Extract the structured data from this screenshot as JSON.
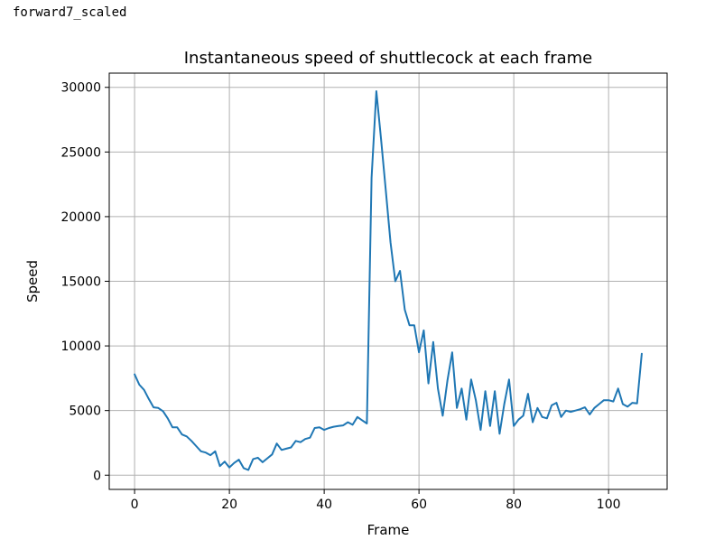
{
  "cell_label": "forward7_scaled",
  "chart_data": {
    "type": "line",
    "title": "Instantaneous speed of shuttlecock at each frame",
    "xlabel": "Frame",
    "ylabel": "Speed",
    "xlim": [
      -5.35,
      112.35
    ],
    "ylim": [
      -1100,
      31100
    ],
    "xticks": [
      0,
      20,
      40,
      60,
      80,
      100
    ],
    "yticks": [
      0,
      5000,
      10000,
      15000,
      20000,
      25000,
      30000
    ],
    "grid": true,
    "line_color": "#1f77b4",
    "series": [
      {
        "x": [
          0,
          1,
          2,
          3,
          4,
          5,
          6,
          7,
          8,
          9,
          10,
          11,
          12,
          13,
          14,
          15,
          16,
          17,
          18,
          19,
          20,
          21,
          22,
          23,
          24,
          25,
          26,
          27,
          28,
          29,
          30,
          31,
          32,
          33,
          34,
          35,
          36,
          37,
          38,
          39,
          40,
          41,
          42,
          43,
          44,
          45,
          46,
          47,
          48,
          49,
          50,
          51,
          52,
          53,
          54,
          55,
          56,
          57,
          58,
          59,
          60,
          61,
          62,
          63,
          64,
          65,
          66,
          67,
          68,
          69,
          70,
          71,
          72,
          73,
          74,
          75,
          76,
          77,
          78,
          79,
          80,
          81,
          82,
          83,
          84,
          85,
          86,
          87,
          88,
          89,
          90,
          91,
          92,
          93,
          94,
          95,
          96,
          97,
          98,
          99,
          100,
          101,
          102,
          103,
          104,
          105,
          106,
          107
        ],
        "values": [
          7800,
          7000,
          6600,
          5900,
          5250,
          5200,
          4950,
          4400,
          3700,
          3700,
          3150,
          3000,
          2650,
          2250,
          1850,
          1750,
          1550,
          1850,
          700,
          1050,
          600,
          950,
          1200,
          550,
          400,
          1250,
          1350,
          1000,
          1300,
          1600,
          2450,
          1950,
          2050,
          2150,
          2650,
          2550,
          2800,
          2900,
          3650,
          3700,
          3500,
          3650,
          3750,
          3800,
          3850,
          4100,
          3900,
          4500,
          4250,
          4000,
          23000,
          29700,
          26000,
          22000,
          18000,
          15000,
          15800,
          12800,
          11600,
          11600,
          9500,
          11200,
          7100,
          10300,
          6700,
          4600,
          7300,
          9500,
          5200,
          6700,
          4300,
          7400,
          5800,
          3500,
          6500,
          3800,
          6500,
          3200,
          5500,
          7400,
          3800,
          4300,
          4600,
          6300,
          4100,
          5200,
          4500,
          4400,
          5400,
          5600,
          4500,
          5000,
          4900,
          5000,
          5100,
          5250,
          4700,
          5200,
          5500,
          5800,
          5800,
          5700,
          6700,
          5500,
          5300,
          5600,
          5550,
          9400
        ]
      }
    ]
  }
}
